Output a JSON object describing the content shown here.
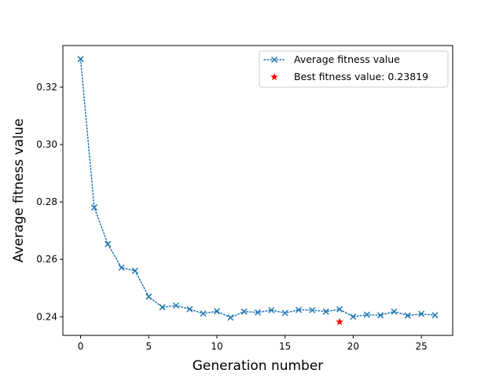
{
  "chart_data": {
    "type": "line",
    "title": "",
    "xlabel": "Generation number",
    "ylabel": "Average fitness value",
    "xlim": [
      -1.3,
      27.3
    ],
    "ylim": [
      0.2335,
      0.3345
    ],
    "xticks": [
      0,
      5,
      10,
      15,
      20,
      25
    ],
    "yticks": [
      0.24,
      0.26,
      0.28,
      0.3,
      0.32
    ],
    "grid": false,
    "legend_position": "top-right",
    "series": [
      {
        "name": "Average fitness value",
        "style": "dotted line with x markers",
        "color": "#1f77b4",
        "x": [
          0,
          1,
          2,
          3,
          4,
          5,
          6,
          7,
          8,
          9,
          10,
          11,
          12,
          13,
          14,
          15,
          16,
          17,
          18,
          19,
          20,
          21,
          22,
          23,
          24,
          25,
          26
        ],
        "y": [
          0.3298,
          0.2781,
          0.2653,
          0.2571,
          0.256,
          0.247,
          0.2433,
          0.2439,
          0.2426,
          0.2411,
          0.2419,
          0.2397,
          0.2418,
          0.2415,
          0.2423,
          0.2413,
          0.2424,
          0.2423,
          0.2418,
          0.2426,
          0.24,
          0.2407,
          0.2405,
          0.2418,
          0.2404,
          0.241,
          0.2405
        ]
      },
      {
        "name": "Best fitness value: 0.23819",
        "style": "star marker",
        "color": "#ff0000",
        "x": [
          19
        ],
        "y": [
          0.23819
        ]
      }
    ]
  }
}
